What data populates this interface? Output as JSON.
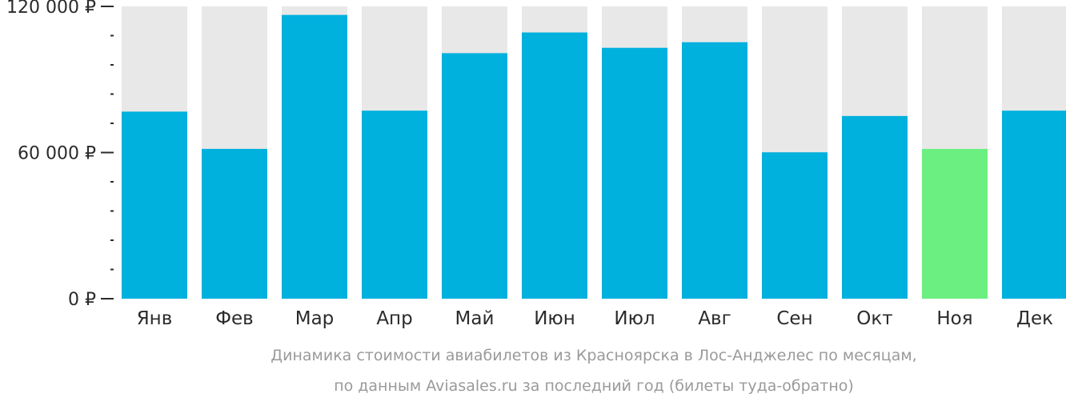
{
  "colors": {
    "bar": "#00b0dd",
    "bar_highlight": "#6bef81",
    "track": "#e8e8e8",
    "axis": "#2b2b2b",
    "caption": "#9a9a9a"
  },
  "chart_data": {
    "type": "bar",
    "categories": [
      "Янв",
      "Фев",
      "Мар",
      "Апр",
      "Май",
      "Июн",
      "Июл",
      "Авг",
      "Сен",
      "Окт",
      "Ноя",
      "Дек"
    ],
    "values": [
      76800,
      61500,
      116500,
      77200,
      100800,
      109300,
      103000,
      105300,
      60100,
      75000,
      61500,
      77200
    ],
    "highlight_index": 10,
    "ylim": [
      0,
      120000
    ],
    "major_ticks": [
      0,
      60000,
      120000
    ],
    "major_tick_labels": [
      "0 ₽",
      "60 000 ₽",
      "120 000 ₽"
    ],
    "minor_tick_step": 12000,
    "title": "",
    "xlabel": "",
    "ylabel": "",
    "caption_lines": [
      "Динамика стоимости авиабилетов из Красноярска в Лос-Анджелес по месяцам,",
      "по данным Aviasales.ru за последний год (билеты туда-обратно)"
    ]
  }
}
